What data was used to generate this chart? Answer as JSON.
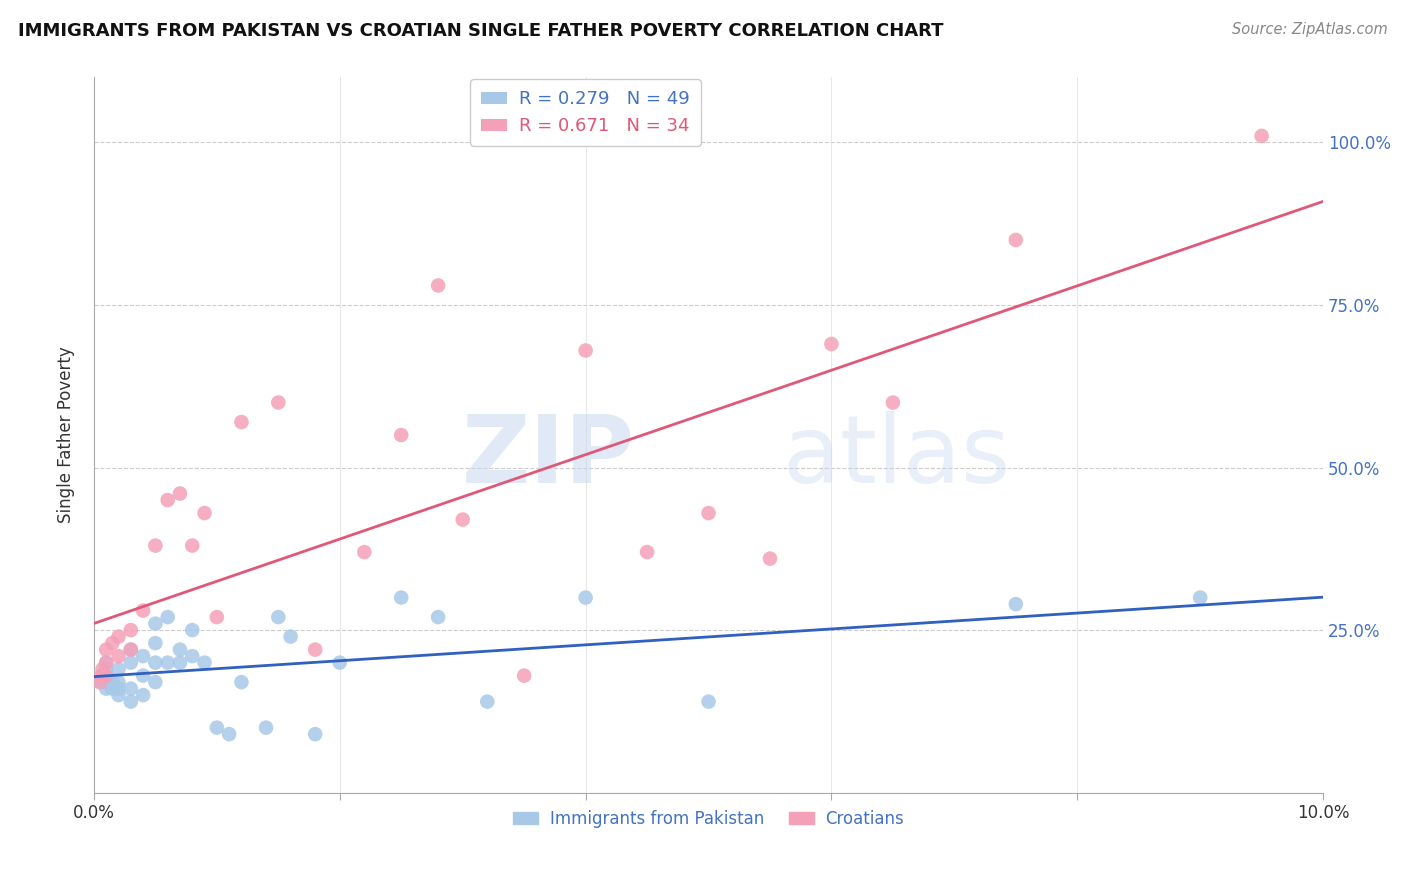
{
  "title": "IMMIGRANTS FROM PAKISTAN VS CROATIAN SINGLE FATHER POVERTY CORRELATION CHART",
  "source": "Source: ZipAtlas.com",
  "ylabel": "Single Father Poverty",
  "y_ticks": [
    0.0,
    0.25,
    0.5,
    0.75,
    1.0
  ],
  "y_tick_labels": [
    "",
    "25.0%",
    "50.0%",
    "75.0%",
    "100.0%"
  ],
  "xlim": [
    0.0,
    0.1
  ],
  "ylim": [
    0.0,
    1.1
  ],
  "blue_R": 0.279,
  "blue_N": 49,
  "pink_R": 0.671,
  "pink_N": 34,
  "blue_color": "#a8c8e8",
  "pink_color": "#f4a0b8",
  "blue_line_color": "#3060c0",
  "pink_line_color": "#e05878",
  "legend_blue_label": "Immigrants from Pakistan",
  "legend_pink_label": "Croatians",
  "watermark_zip": "ZIP",
  "watermark_atlas": "atlas",
  "blue_scatter_x": [
    0.0005,
    0.0006,
    0.0007,
    0.0008,
    0.0009,
    0.001,
    0.001,
    0.001,
    0.001,
    0.001,
    0.0015,
    0.0015,
    0.002,
    0.002,
    0.002,
    0.002,
    0.003,
    0.003,
    0.003,
    0.003,
    0.004,
    0.004,
    0.004,
    0.005,
    0.005,
    0.005,
    0.005,
    0.006,
    0.006,
    0.007,
    0.007,
    0.008,
    0.008,
    0.009,
    0.01,
    0.011,
    0.012,
    0.014,
    0.015,
    0.016,
    0.018,
    0.02,
    0.025,
    0.028,
    0.032,
    0.04,
    0.05,
    0.075,
    0.09
  ],
  "blue_scatter_y": [
    0.17,
    0.17,
    0.18,
    0.18,
    0.17,
    0.16,
    0.17,
    0.18,
    0.19,
    0.2,
    0.16,
    0.17,
    0.15,
    0.16,
    0.17,
    0.19,
    0.14,
    0.16,
    0.2,
    0.22,
    0.15,
    0.18,
    0.21,
    0.17,
    0.2,
    0.23,
    0.26,
    0.2,
    0.27,
    0.2,
    0.22,
    0.21,
    0.25,
    0.2,
    0.1,
    0.09,
    0.17,
    0.1,
    0.27,
    0.24,
    0.09,
    0.2,
    0.3,
    0.27,
    0.14,
    0.3,
    0.14,
    0.29,
    0.3
  ],
  "pink_scatter_x": [
    0.0005,
    0.0006,
    0.0007,
    0.001,
    0.001,
    0.001,
    0.0015,
    0.002,
    0.002,
    0.003,
    0.003,
    0.004,
    0.005,
    0.006,
    0.007,
    0.008,
    0.009,
    0.01,
    0.012,
    0.015,
    0.018,
    0.022,
    0.025,
    0.028,
    0.03,
    0.035,
    0.04,
    0.045,
    0.05,
    0.055,
    0.06,
    0.065,
    0.075,
    0.095
  ],
  "pink_scatter_y": [
    0.17,
    0.18,
    0.19,
    0.18,
    0.2,
    0.22,
    0.23,
    0.21,
    0.24,
    0.22,
    0.25,
    0.28,
    0.38,
    0.45,
    0.46,
    0.38,
    0.43,
    0.27,
    0.57,
    0.6,
    0.22,
    0.37,
    0.55,
    0.78,
    0.42,
    0.18,
    0.68,
    0.37,
    0.43,
    0.36,
    0.69,
    0.6,
    0.85,
    1.01
  ]
}
